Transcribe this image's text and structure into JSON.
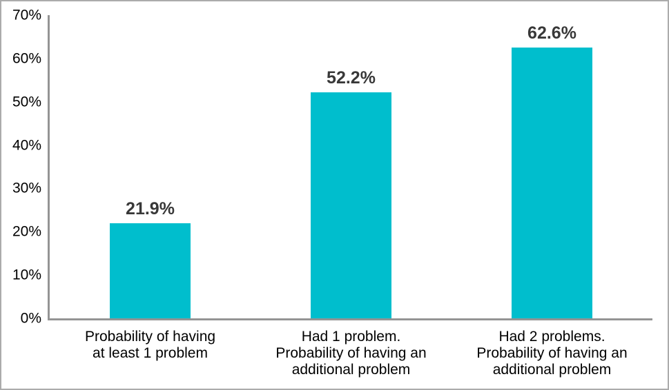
{
  "chart_data": {
    "type": "bar",
    "categories": [
      "Probability of having\nat least 1 problem",
      "Had 1 problem.\nProbability of having an\nadditional problem",
      "Had 2 problems.\nProbability of having an\nadditional problem"
    ],
    "values": [
      21.9,
      52.2,
      62.6
    ],
    "value_labels": [
      "21.9%",
      "52.2%",
      "62.6%"
    ],
    "title": "",
    "xlabel": "",
    "ylabel": "",
    "ylim": [
      0,
      70
    ],
    "ytick_step": 10,
    "ytick_labels": [
      "0%",
      "10%",
      "20%",
      "30%",
      "40%",
      "50%",
      "60%",
      "70%"
    ],
    "grid": false,
    "legend_position": "none",
    "colors": {
      "bar": "#00becd",
      "axis": "#949494",
      "value_label": "#383838",
      "tick_label": "#000000",
      "frame_border": "#ababab"
    }
  }
}
